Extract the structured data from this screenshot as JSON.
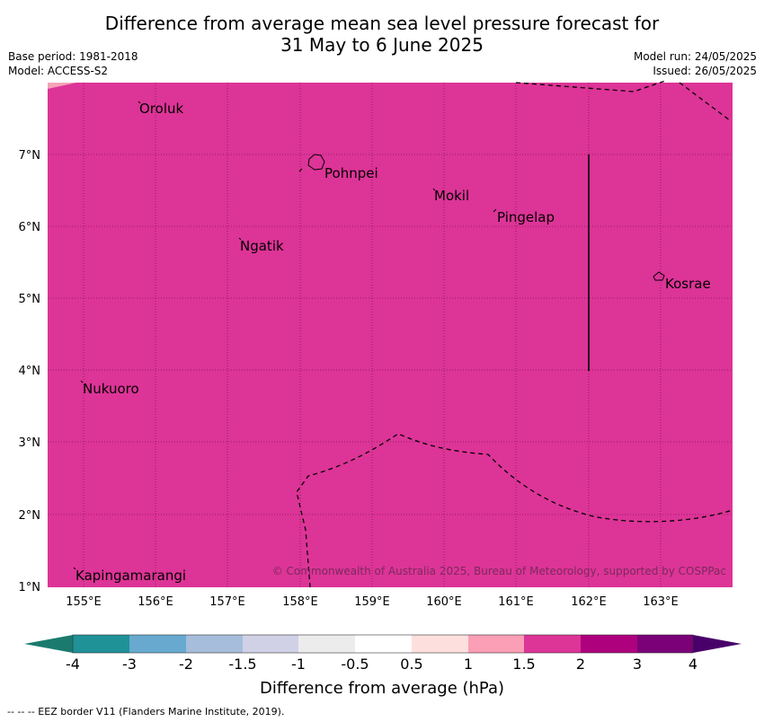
{
  "header": {
    "title_line1": "Difference from average mean sea level pressure forecast for",
    "title_line2": "31 May to 6 June 2025",
    "base_period": "Base period: 1981-2018",
    "model": "Model: ACCESS-S2",
    "model_run": "Model run: 24/05/2025",
    "issued": "Issued: 26/05/2025"
  },
  "map": {
    "background_color": "#dd3497",
    "corner_color": "#f4a3b8",
    "x_ticks": [
      "155°E",
      "156°E",
      "157°E",
      "158°E",
      "159°E",
      "160°E",
      "161°E",
      "162°E",
      "163°E"
    ],
    "y_ticks": [
      "7°N",
      "6°N",
      "5°N",
      "4°N",
      "3°N",
      "2°N",
      "1°N"
    ],
    "places": [
      "Oroluk",
      "Pohnpei",
      "Mokil",
      "Pingelap",
      "Ngatik",
      "Kosrae",
      "Nukuoro",
      "Kapingamarangi"
    ],
    "copyright": "© Commonwealth of Australia 2025, Bureau of Meteorology, supported by COSPPac"
  },
  "colorbar": {
    "colors": [
      "#1b7a6e",
      "#1f9298",
      "#67a9cf",
      "#a6bddb",
      "#d0d1e6",
      "#ececec",
      "#ffffff",
      "#fde0dd",
      "#fa9fb5",
      "#dd3497",
      "#ae017e",
      "#7a0177",
      "#49006a"
    ],
    "tick_labels": [
      "-4",
      "-3",
      "-2",
      "-1.5",
      "-1",
      "-0.5",
      "0.5",
      "1",
      "1.5",
      "2",
      "3",
      "4"
    ],
    "label": "Difference from average (hPa)"
  },
  "footer": {
    "legend": "--  --  -- EEZ border V11 (Flanders Marine Institute, 2019)."
  }
}
